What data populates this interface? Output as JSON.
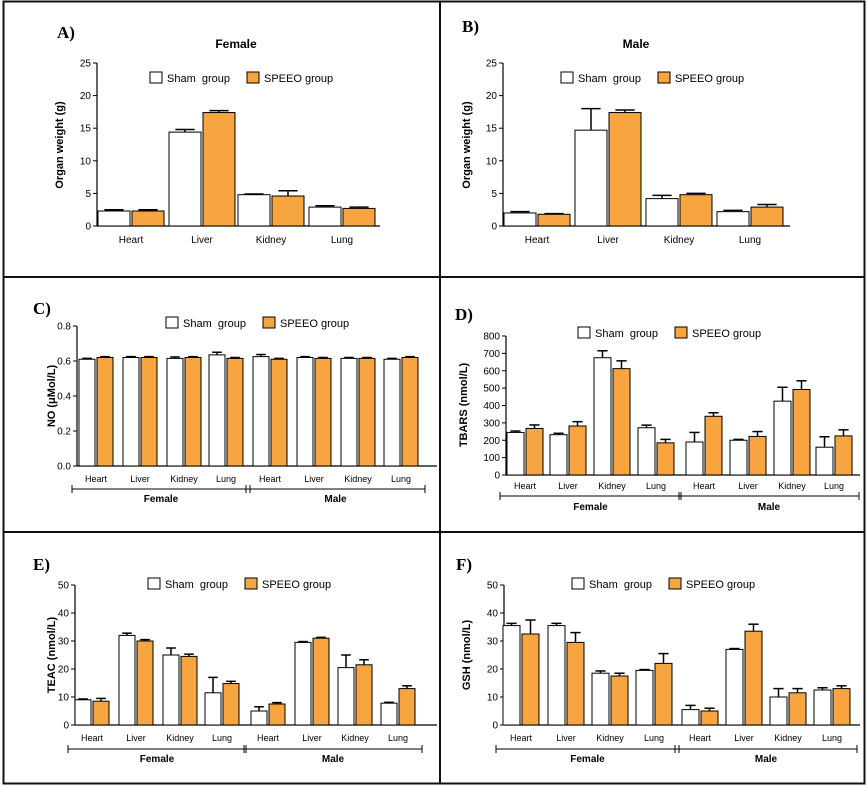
{
  "colors": {
    "sham": "#ffffff",
    "speeo": "#f7a541",
    "axis": "#000000",
    "border": "#111111"
  },
  "chart_data": [
    {
      "type": "bar",
      "panel": "A)",
      "title": "Female",
      "ylabel": "Organ weight (g)",
      "ylim": [
        0,
        25
      ],
      "yticks": [
        0,
        5,
        10,
        15,
        20,
        25
      ],
      "categories": [
        "Heart",
        "Liver",
        "Kidney",
        "Lung"
      ],
      "series": [
        {
          "name": "Sham  group",
          "values": [
            2.3,
            14.4,
            4.8,
            2.9
          ],
          "errors": [
            0.2,
            0.4,
            0.1,
            0.2
          ]
        },
        {
          "name": "SPEEO group",
          "values": [
            2.3,
            17.4,
            4.6,
            2.7
          ],
          "errors": [
            0.2,
            0.3,
            0.8,
            0.2
          ]
        }
      ],
      "groups": []
    },
    {
      "type": "bar",
      "panel": "B)",
      "title": "Male",
      "ylabel": "Organ weight (g)",
      "ylim": [
        0,
        25
      ],
      "yticks": [
        0,
        5,
        10,
        15,
        20,
        25
      ],
      "categories": [
        "Heart",
        "Liver",
        "Kidney",
        "Lung"
      ],
      "series": [
        {
          "name": "Sham  group",
          "values": [
            2.0,
            14.7,
            4.2,
            2.2
          ],
          "errors": [
            0.2,
            3.3,
            0.5,
            0.2
          ]
        },
        {
          "name": "SPEEO group",
          "values": [
            1.8,
            17.4,
            4.8,
            2.9
          ],
          "errors": [
            0.1,
            0.4,
            0.2,
            0.4
          ]
        }
      ],
      "groups": []
    },
    {
      "type": "bar",
      "panel": "C)",
      "title": "",
      "ylabel": "NO (μMol/L)",
      "ylim": [
        0,
        0.8
      ],
      "yticks": [
        0.0,
        0.2,
        0.4,
        0.6,
        0.8
      ],
      "categories": [
        "Heart",
        "Liver",
        "Kidney",
        "Lung",
        "Heart",
        "Liver",
        "Kidney",
        "Lung"
      ],
      "series": [
        {
          "name": "Sham  group",
          "values": [
            0.61,
            0.62,
            0.615,
            0.635,
            0.625,
            0.62,
            0.615,
            0.61
          ],
          "errors": [
            0.005,
            0.005,
            0.008,
            0.015,
            0.012,
            0.005,
            0.005,
            0.005
          ]
        },
        {
          "name": "SPEEO group",
          "values": [
            0.62,
            0.62,
            0.62,
            0.615,
            0.61,
            0.615,
            0.615,
            0.62
          ],
          "errors": [
            0.005,
            0.005,
            0.005,
            0.005,
            0.005,
            0.005,
            0.005,
            0.005
          ]
        }
      ],
      "groups": [
        "Female",
        "Male"
      ]
    },
    {
      "type": "bar",
      "panel": "D)",
      "title": "",
      "ylabel": "TBARS (nmol/L)",
      "ylim": [
        0,
        800
      ],
      "yticks": [
        0,
        100,
        200,
        300,
        400,
        500,
        600,
        700,
        800
      ],
      "categories": [
        "Heart",
        "Liver",
        "Kidney",
        "Lung",
        "Heart",
        "Liver",
        "Kidney",
        "Lung"
      ],
      "series": [
        {
          "name": "Sham  group",
          "values": [
            245,
            232,
            675,
            272,
            190,
            200,
            425,
            160
          ],
          "errors": [
            8,
            8,
            40,
            15,
            55,
            5,
            80,
            60
          ]
        },
        {
          "name": "SPEEO group",
          "values": [
            268,
            282,
            612,
            185,
            338,
            222,
            492,
            225
          ],
          "errors": [
            20,
            25,
            45,
            20,
            20,
            28,
            50,
            35
          ]
        }
      ],
      "groups": [
        "Female",
        "Male"
      ]
    },
    {
      "type": "bar",
      "panel": "E)",
      "title": "",
      "ylabel": "TEAC (nmol/L)",
      "ylim": [
        0,
        50
      ],
      "yticks": [
        0,
        10,
        20,
        30,
        40,
        50
      ],
      "categories": [
        "Heart",
        "Liver",
        "Kidney",
        "Lung",
        "Heart",
        "Liver",
        "Kidney",
        "Lung"
      ],
      "series": [
        {
          "name": "Sham  group",
          "values": [
            9.0,
            32.0,
            25.0,
            11.5,
            5.0,
            29.5,
            20.5,
            7.8
          ],
          "errors": [
            0.3,
            0.8,
            2.5,
            5.5,
            1.5,
            0.3,
            4.5,
            0.3
          ]
        },
        {
          "name": "SPEEO group",
          "values": [
            8.5,
            30.0,
            24.5,
            14.8,
            7.5,
            31.0,
            21.5,
            13.0
          ],
          "errors": [
            1.0,
            0.5,
            0.8,
            0.8,
            0.5,
            0.3,
            1.8,
            1.0
          ]
        }
      ],
      "groups": [
        "Female",
        "Male"
      ]
    },
    {
      "type": "bar",
      "panel": "F)",
      "title": "",
      "ylabel": "GSH (nmol/L)",
      "ylim": [
        0,
        50
      ],
      "yticks": [
        0,
        10,
        20,
        30,
        40,
        50
      ],
      "categories": [
        "Heart",
        "Liver",
        "Kidney",
        "Lung",
        "Heart",
        "Liver",
        "Kidney",
        "Lung"
      ],
      "series": [
        {
          "name": "Sham  group",
          "values": [
            35.5,
            35.5,
            18.5,
            19.5,
            5.5,
            27.0,
            10.0,
            12.5
          ],
          "errors": [
            0.8,
            0.8,
            0.8,
            0.3,
            1.5,
            0.3,
            3.0,
            0.8
          ]
        },
        {
          "name": "SPEEO group",
          "values": [
            32.5,
            29.5,
            17.5,
            22.0,
            5.0,
            33.5,
            11.5,
            13.0
          ],
          "errors": [
            5.0,
            3.5,
            1.0,
            3.5,
            1.0,
            2.5,
            1.5,
            1.0
          ]
        }
      ],
      "groups": [
        "Female",
        "Male"
      ]
    }
  ]
}
